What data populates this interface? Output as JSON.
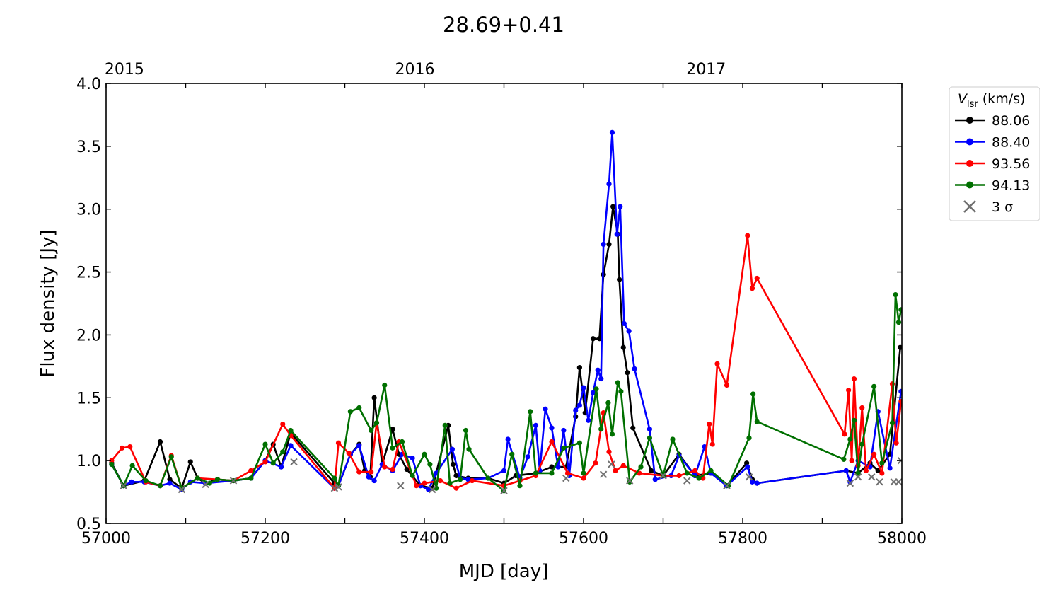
{
  "chart_data": {
    "type": "line",
    "title": "28.69+0.41",
    "xlabel": "MJD [day]",
    "ylabel": "Flux density [Jy]",
    "xlim": [
      57000,
      58000
    ],
    "ylim": [
      0.5,
      4.0
    ],
    "xticks": [
      "57000",
      "57200",
      "57400",
      "57600",
      "57800",
      "58000"
    ],
    "yticks": [
      "0.5",
      "1.0",
      "1.5",
      "2.0",
      "2.5",
      "3.0",
      "3.5",
      "4.0"
    ],
    "top_axis": [
      {
        "label": "2015",
        "mjd": 57023
      },
      {
        "label": "2016",
        "mjd": 57388
      },
      {
        "label": "2017",
        "mjd": 57754
      }
    ],
    "legend": {
      "title_main": "V",
      "title_sub": "lsr",
      "title_unit": " (km/s)",
      "placement": "outside-right-top"
    },
    "series": [
      {
        "name": "88.06",
        "color": "#000000",
        "x": [
          57007,
          57022,
          57048,
          57068,
          57080,
          57095,
          57106,
          57115,
          57125,
          57140,
          57160,
          57182,
          57200,
          57210,
          57220,
          57232,
          57287,
          57292,
          57307,
          57318,
          57325,
          57332,
          57337,
          57347,
          57360,
          57368,
          57378,
          57395,
          57410,
          57430,
          57436,
          57440,
          57455,
          57480,
          57500,
          57515,
          57540,
          57560,
          57578,
          57590,
          57595,
          57602,
          57612,
          57620,
          57625,
          57632,
          57637,
          57643,
          57645,
          57650,
          57655,
          57662,
          57685,
          57700,
          57720,
          57740,
          57760,
          57780,
          57805,
          57812,
          57818,
          57930,
          57945,
          57960,
          57970,
          57985,
          57998
        ],
        "y": [
          0.98,
          0.8,
          0.84,
          1.15,
          0.85,
          0.78,
          0.99,
          0.86,
          0.82,
          0.85,
          0.84,
          0.86,
          1.0,
          1.13,
          0.95,
          1.22,
          0.82,
          0.8,
          1.05,
          1.13,
          0.92,
          0.87,
          1.5,
          0.97,
          1.25,
          1.05,
          0.93,
          0.8,
          0.78,
          1.28,
          0.97,
          0.88,
          0.86,
          0.86,
          0.82,
          0.88,
          0.9,
          0.95,
          0.95,
          1.35,
          1.74,
          1.38,
          1.97,
          1.97,
          2.48,
          2.72,
          3.02,
          2.8,
          2.44,
          1.9,
          1.7,
          1.26,
          0.92,
          0.88,
          1.05,
          0.88,
          0.9,
          0.8,
          0.98,
          0.85,
          0.82,
          0.92,
          0.9,
          0.98,
          0.92,
          1.05,
          1.9
        ]
      },
      {
        "name": "88.40",
        "color": "#0000ff",
        "x": [
          57007,
          57022,
          57032,
          57048,
          57068,
          57080,
          57095,
          57106,
          57125,
          57160,
          57182,
          57200,
          57220,
          57232,
          57287,
          57292,
          57307,
          57318,
          57330,
          57337,
          57347,
          57360,
          57372,
          57385,
          57395,
          57405,
          57415,
          57435,
          57445,
          57455,
          57480,
          57500,
          57505,
          57520,
          57530,
          57540,
          57545,
          57552,
          57560,
          57568,
          57575,
          57582,
          57590,
          57595,
          57600,
          57606,
          57612,
          57618,
          57622,
          57625,
          57632,
          57636,
          57642,
          57646,
          57651,
          57657,
          57664,
          57683,
          57690,
          57710,
          57720,
          57740,
          57752,
          57760,
          57780,
          57806,
          57812,
          57818,
          57930,
          57935,
          57945,
          57960,
          57970,
          57985,
          57999
        ],
        "y": [
          0.97,
          0.8,
          0.83,
          0.83,
          0.8,
          0.82,
          0.77,
          0.83,
          0.82,
          0.84,
          0.86,
          1.0,
          0.95,
          1.12,
          0.78,
          0.8,
          1.05,
          1.12,
          0.87,
          0.84,
          0.97,
          0.92,
          1.05,
          1.02,
          0.8,
          0.77,
          0.9,
          1.09,
          0.86,
          0.85,
          0.86,
          0.92,
          1.17,
          0.86,
          1.03,
          1.28,
          0.92,
          1.41,
          1.26,
          0.95,
          1.24,
          0.88,
          1.4,
          1.44,
          1.58,
          1.32,
          1.54,
          1.72,
          1.65,
          2.72,
          3.2,
          3.61,
          2.8,
          3.02,
          2.09,
          2.03,
          1.73,
          1.25,
          0.85,
          0.88,
          1.04,
          0.88,
          1.11,
          0.9,
          0.8,
          0.95,
          0.83,
          0.82,
          0.92,
          0.83,
          1.0,
          0.95,
          1.39,
          0.94,
          1.55
        ]
      },
      {
        "name": "93.56",
        "color": "#ff0000",
        "x": [
          57007,
          57020,
          57030,
          57050,
          57068,
          57082,
          57095,
          57115,
          57140,
          57160,
          57182,
          57200,
          57222,
          57232,
          57287,
          57292,
          57305,
          57318,
          57333,
          57340,
          57350,
          57360,
          57368,
          57390,
          57400,
          57420,
          57440,
          57460,
          57500,
          57520,
          57540,
          57560,
          57580,
          57600,
          57615,
          57625,
          57632,
          57640,
          57650,
          57670,
          57700,
          57720,
          57740,
          57750,
          57758,
          57762,
          57768,
          57780,
          57806,
          57812,
          57818,
          57928,
          57933,
          57937,
          57940,
          57945,
          57950,
          57955,
          57965,
          57975,
          57988,
          57993,
          57999
        ],
        "y": [
          1.0,
          1.1,
          1.11,
          0.83,
          0.8,
          1.04,
          0.78,
          0.86,
          0.85,
          0.84,
          0.92,
          0.99,
          1.29,
          1.2,
          0.78,
          1.14,
          1.06,
          0.91,
          0.91,
          1.3,
          0.95,
          0.93,
          1.15,
          0.8,
          0.82,
          0.84,
          0.78,
          0.84,
          0.8,
          0.84,
          0.88,
          1.15,
          0.9,
          0.86,
          0.98,
          1.38,
          1.07,
          0.92,
          0.96,
          0.9,
          0.88,
          0.88,
          0.92,
          0.86,
          1.29,
          1.13,
          1.77,
          1.6,
          2.79,
          2.37,
          2.45,
          1.21,
          1.56,
          1.0,
          1.65,
          0.96,
          1.42,
          0.92,
          1.05,
          0.9,
          1.61,
          1.14,
          1.47
        ]
      },
      {
        "name": "94.13",
        "color": "#007000",
        "x": [
          57007,
          57022,
          57033,
          57050,
          57068,
          57082,
          57095,
          57115,
          57130,
          57140,
          57160,
          57182,
          57200,
          57210,
          57222,
          57232,
          57287,
          57292,
          57307,
          57318,
          57333,
          57340,
          57350,
          57360,
          57372,
          57385,
          57400,
          57407,
          57415,
          57426,
          57432,
          57445,
          57452,
          57456,
          57480,
          57500,
          57510,
          57520,
          57533,
          57540,
          57560,
          57575,
          57595,
          57600,
          57616,
          57622,
          57631,
          57636,
          57643,
          57647,
          57658,
          57672,
          57683,
          57700,
          57712,
          57730,
          57745,
          57760,
          57782,
          57808,
          57813,
          57818,
          57927,
          57935,
          57940,
          57945,
          57950,
          57965,
          57975,
          57988,
          57992,
          57996,
          57999
        ],
        "y": [
          0.97,
          0.8,
          0.96,
          0.84,
          0.8,
          1.03,
          0.78,
          0.86,
          0.82,
          0.85,
          0.84,
          0.86,
          1.13,
          0.98,
          1.07,
          1.24,
          0.86,
          0.8,
          1.39,
          1.42,
          1.24,
          1.3,
          1.6,
          1.1,
          1.15,
          0.88,
          1.05,
          0.97,
          0.78,
          1.28,
          0.82,
          0.85,
          1.24,
          1.09,
          0.86,
          0.76,
          1.05,
          0.8,
          1.39,
          0.9,
          0.9,
          1.1,
          1.14,
          0.9,
          1.57,
          1.25,
          1.46,
          1.21,
          1.62,
          1.55,
          0.83,
          0.95,
          1.18,
          0.88,
          1.17,
          0.9,
          0.86,
          0.92,
          0.8,
          1.18,
          1.53,
          1.31,
          1.01,
          1.17,
          1.32,
          0.9,
          1.13,
          1.59,
          0.98,
          1.3,
          2.32,
          2.1,
          2.2
        ]
      }
    ],
    "sigma3": {
      "name": "3 σ",
      "color": "#707070",
      "x": [
        57022,
        57095,
        57125,
        57160,
        57236,
        57287,
        57292,
        57370,
        57410,
        57500,
        57578,
        57625,
        57635,
        57658,
        57700,
        57730,
        57780,
        57808,
        57935,
        57945,
        57962,
        57972,
        57990,
        57996,
        57999
      ],
      "y": [
        0.8,
        0.77,
        0.81,
        0.84,
        0.99,
        0.78,
        0.79,
        0.8,
        0.77,
        0.76,
        0.86,
        0.89,
        0.97,
        0.84,
        0.88,
        0.84,
        0.8,
        0.87,
        0.82,
        0.87,
        0.87,
        0.83,
        0.83,
        0.83,
        1.0
      ]
    }
  }
}
